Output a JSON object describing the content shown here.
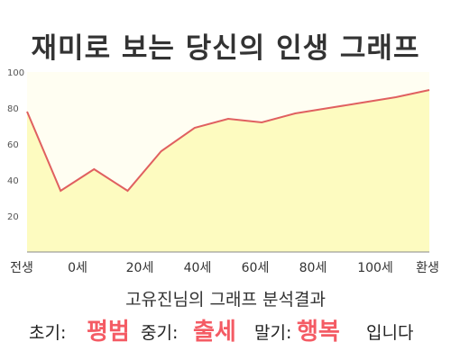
{
  "title": "재미로 보는 당신의 인생 그래프",
  "analysis_title": "고유진님의 그래프 분석결과",
  "result": {
    "early_label": "초기:",
    "early_value": "평범",
    "middle_label": "중기:",
    "middle_value": "출세",
    "late_label": "말기:",
    "late_value": "행복",
    "ending": "입니다"
  },
  "colors": {
    "line": "#e06060",
    "fill": "#fdfbc0",
    "plot_bg": "#fffef2",
    "highlight": "#f45b64"
  },
  "chart_data": {
    "type": "area",
    "title": "재미로 보는 당신의 인생 그래프",
    "xlabel": "",
    "ylabel": "",
    "x_tick_labels": [
      "전생",
      "0세",
      "20세",
      "40세",
      "60세",
      "80세",
      "100세",
      "환생"
    ],
    "y_ticks": [
      20,
      40,
      60,
      80,
      100
    ],
    "ylim": [
      0,
      100
    ],
    "grid": false,
    "legend": "none",
    "series": [
      {
        "values": [
          78,
          34,
          46,
          34,
          56,
          69,
          74,
          72,
          77,
          80,
          83,
          86,
          90
        ]
      }
    ]
  }
}
